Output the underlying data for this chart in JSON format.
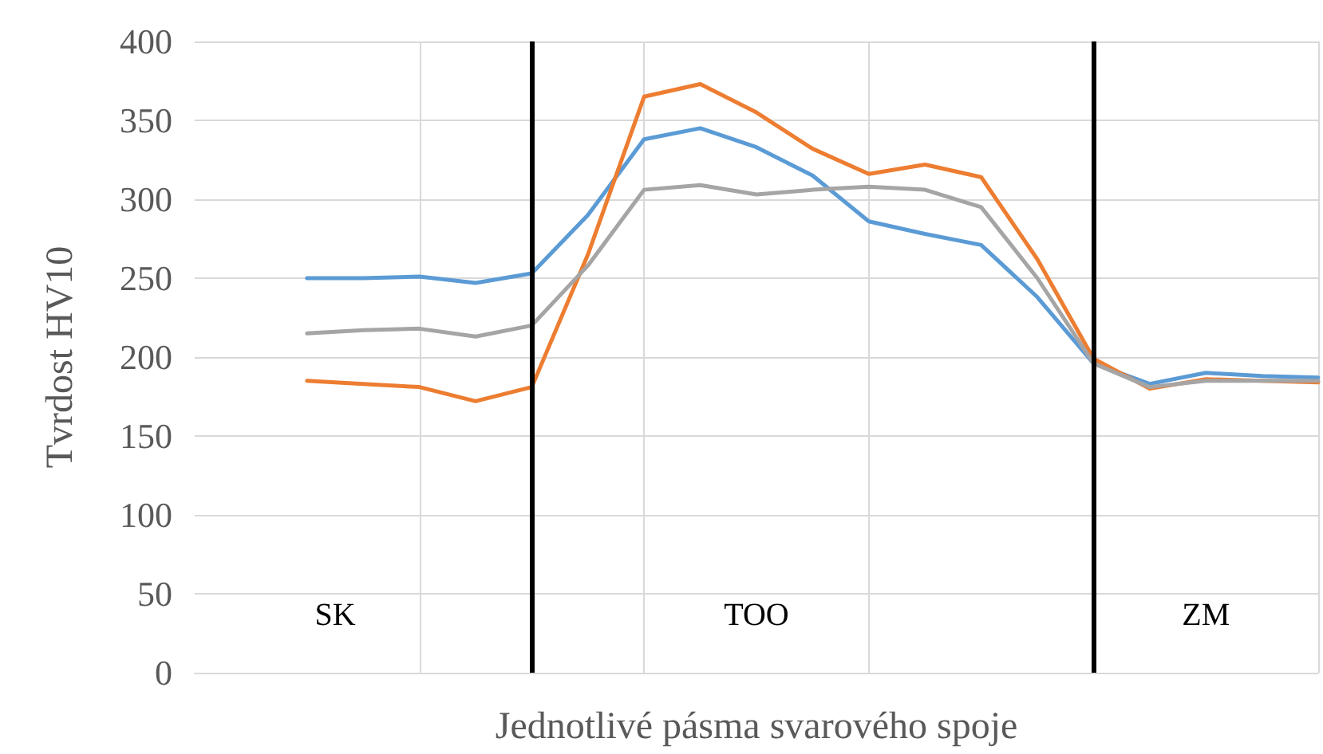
{
  "chart_data": {
    "type": "line",
    "xlabel": "Jednotlivé pásma svarového spoje",
    "ylabel": "Tvrdost HV10",
    "categories": [
      null,
      null,
      null,
      null,
      null,
      null,
      null,
      null,
      null,
      null,
      "TOO",
      null,
      null,
      null,
      null,
      null,
      null,
      null,
      "ZM",
      null,
      null
    ],
    "series": [
      {
        "color": "#5b9bd5",
        "values": [
          null,
          null,
          250,
          250,
          251,
          247,
          253,
          290,
          338,
          345,
          333,
          315,
          286,
          278,
          271,
          238,
          196,
          183,
          190,
          188,
          187
        ]
      },
      {
        "color": "#ed7d31",
        "values": [
          null,
          null,
          185,
          183,
          181,
          172,
          181,
          265,
          365,
          373,
          355,
          332,
          316,
          322,
          314,
          262,
          199,
          180,
          186,
          185,
          184
        ]
      },
      {
        "color": "#a5a5a5",
        "values": [
          null,
          null,
          215,
          217,
          218,
          213,
          220,
          258,
          306,
          309,
          303,
          306,
          308,
          306,
          295,
          250,
          196,
          181,
          185,
          185,
          185
        ]
      }
    ],
    "ylim": [
      0,
      400
    ],
    "yticks": [
      0,
      50,
      100,
      150,
      200,
      250,
      300,
      350,
      400
    ],
    "grid": true,
    "marker": "none",
    "line_style": "solid",
    "annotations": [
      "SK"
    ]
  }
}
